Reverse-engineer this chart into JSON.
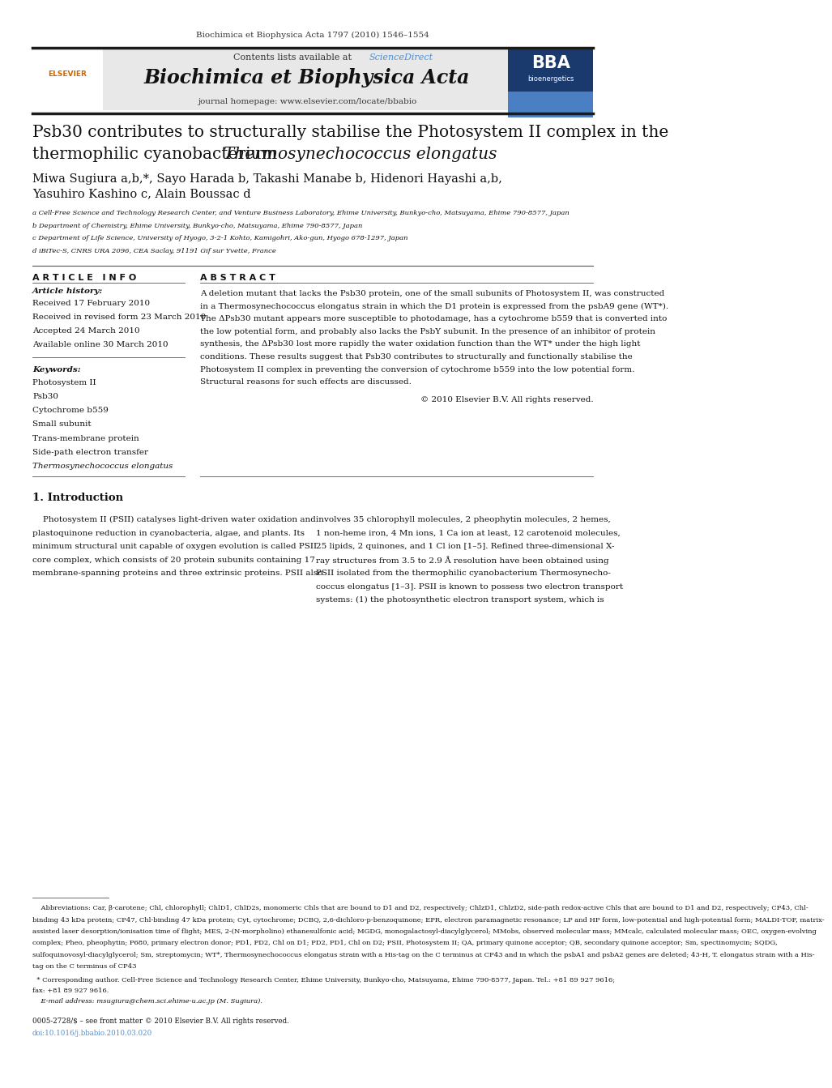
{
  "page_width": 9.92,
  "page_height": 13.23,
  "background_color": "#ffffff",
  "journal_citation": "Biochimica et Biophysica Acta 1797 (2010) 1546–1554",
  "journal_name": "Biochimica et Biophysica Acta",
  "journal_url": "journal homepage: www.elsevier.com/locate/bbabio",
  "contents_line": "Contents lists available at ",
  "sciencedirect_text": "ScienceDirect",
  "title_line1": "Psb30 contributes to structurally stabilise the Photosystem II complex in the",
  "title_line2_normal": "thermophilic cyanobacterium ",
  "title_line2_italic": "Thermosynechococcus elongatus",
  "authors_line1": "Miwa Sugiura a,b,*, Sayo Harada b, Takashi Manabe b, Hidenori Hayashi a,b,",
  "authors_line2": "Yasuhiro Kashino c, Alain Boussac d",
  "affil_a": "a Cell-Free Science and Technology Research Center, and Venture Business Laboratory, Ehime University, Bunkyo-cho, Matsuyama, Ehime 790-8577, Japan",
  "affil_b": "b Department of Chemistry, Ehime University, Bunkyo-cho, Matsuyama, Ehime 790-8577, Japan",
  "affil_c": "c Department of Life Science, University of Hyogo, 3-2-1 Kohto, Kamigohri, Ako-gun, Hyogo 678-1297, Japan",
  "affil_d": "d iBiTec-S, CNRS URA 2096, CEA Saclay, 91191 Gif sur Yvette, France",
  "article_info_header": "A R T I C L E   I N F O",
  "article_history_label": "Article history:",
  "received": "Received 17 February 2010",
  "received_revised": "Received in revised form 23 March 2010",
  "accepted": "Accepted 24 March 2010",
  "available": "Available online 30 March 2010",
  "keywords_label": "Keywords:",
  "keywords": [
    "Photosystem II",
    "Psb30",
    "Cytochrome b559",
    "Small subunit",
    "Trans-membrane protein",
    "Side-path electron transfer",
    "Thermosynechococcus elongatus"
  ],
  "abstract_header": "A B S T R A C T",
  "abstract_lines": [
    "A deletion mutant that lacks the Psb30 protein, one of the small subunits of Photosystem II, was constructed",
    "in a Thermosynechococcus elongatus strain in which the D1 protein is expressed from the psbA9 gene (WT*).",
    "The ΔPsb30 mutant appears more susceptible to photodamage, has a cytochrome b559 that is converted into",
    "the low potential form, and probably also lacks the PsbY subunit. In the presence of an inhibitor of protein",
    "synthesis, the ΔPsb30 lost more rapidly the water oxidation function than the WT* under the high light",
    "conditions. These results suggest that Psb30 contributes to structurally and functionally stabilise the",
    "Photosystem II complex in preventing the conversion of cytochrome b559 into the low potential form.",
    "Structural reasons for such effects are discussed."
  ],
  "copyright": "© 2010 Elsevier B.V. All rights reserved.",
  "section1_title": "1. Introduction",
  "intro_col1_lines": [
    "    Photosystem II (PSII) catalyses light-driven water oxidation and",
    "plastoquinone reduction in cyanobacteria, algae, and plants. Its",
    "minimum structural unit capable of oxygen evolution is called PSII",
    "core complex, which consists of 20 protein subunits containing 17",
    "membrane-spanning proteins and three extrinsic proteins. PSII also"
  ],
  "intro_col2_lines": [
    "involves 35 chlorophyll molecules, 2 pheophytin molecules, 2 hemes,",
    "1 non-heme iron, 4 Mn ions, 1 Ca ion at least, 12 carotenoid molecules,",
    "25 lipids, 2 quinones, and 1 Cl ion [1–5]. Refined three-dimensional X-",
    "ray structures from 3.5 to 2.9 Å resolution have been obtained using",
    "PSII isolated from the thermophilic cyanobacterium Thermosynecho-",
    "coccus elongatus [1–3]. PSII is known to possess two electron transport",
    "systems: (1) the photosynthetic electron transport system, which is"
  ],
  "abbrev_lines": [
    "    Abbreviations: Car, β-carotene; Chl, chlorophyll; ChlD1, ChlD2s, monomeric Chls that are bound to D1 and D2, respectively; ChlzD1, ChlzD2, side-path redox-active Chls that are bound to D1 and D2, respectively; CP43, Chl-",
    "binding 43 kDa protein; CP47, Chl-binding 47 kDa protein; Cyt, cytochrome; DCBQ, 2,6-dichloro-p-benzoquinone; EPR, electron paramagnetic resonance; LP and HP form, low-potential and high-potential form; MALDI-TOF, matrix-",
    "assisted laser desorption/ionisation time of flight; MES, 2-(N-morpholino) ethanesulfonic acid; MGDG, monogalactosyl-diacylglycerol; MMobs, observed molecular mass; MMcalc, calculated molecular mass; OEC, oxygen-evolving",
    "complex; Pheo, pheophytin; P680, primary electron donor; PD1, PD2, Chl on D1; PD2, PD1, Chl on D2; PSII, Photosystem II; QA, primary quinone acceptor; QB, secondary quinone acceptor; Sm, spectinomycin; SQDG,",
    "sulfoquinovosyl-diacylglycerol; Sm, streptomycin; WT*, Thermosynechococcus elongatus strain with a His-tag on the C terminus at CP43 and in which the psbA1 and psbA2 genes are deleted; 43-H, T. elongatus strain with a His-",
    "tag on the C terminus of CP43"
  ],
  "corr_line1": "  * Corresponding author. Cell-Free Science and Technology Research Center, Ehime University, Bunkyo-cho, Matsuyama, Ehime 790-8577, Japan. Tel.: +81 89 927 9616;",
  "corr_line2": "fax: +81 89 927 9616.",
  "email_line": "    E-mail address: msugiura@chem.sci.ehime-u.ac.jp (M. Sugiura).",
  "footer_line1": "0005-2728/$ – see front matter © 2010 Elsevier B.V. All rights reserved.",
  "footer_line2": "doi:10.1016/j.bbabio.2010.03.020",
  "header_bg": "#e8e8e8",
  "sciencedirect_color": "#4a90d9",
  "link_color": "#4a90d9",
  "thick_bar_color": "#1a1a1a",
  "thin_line_color": "#555555",
  "bba_blue_dark": "#1a3a6e",
  "bba_blue_light": "#4a7fc4",
  "elsevier_orange": "#cc6600"
}
